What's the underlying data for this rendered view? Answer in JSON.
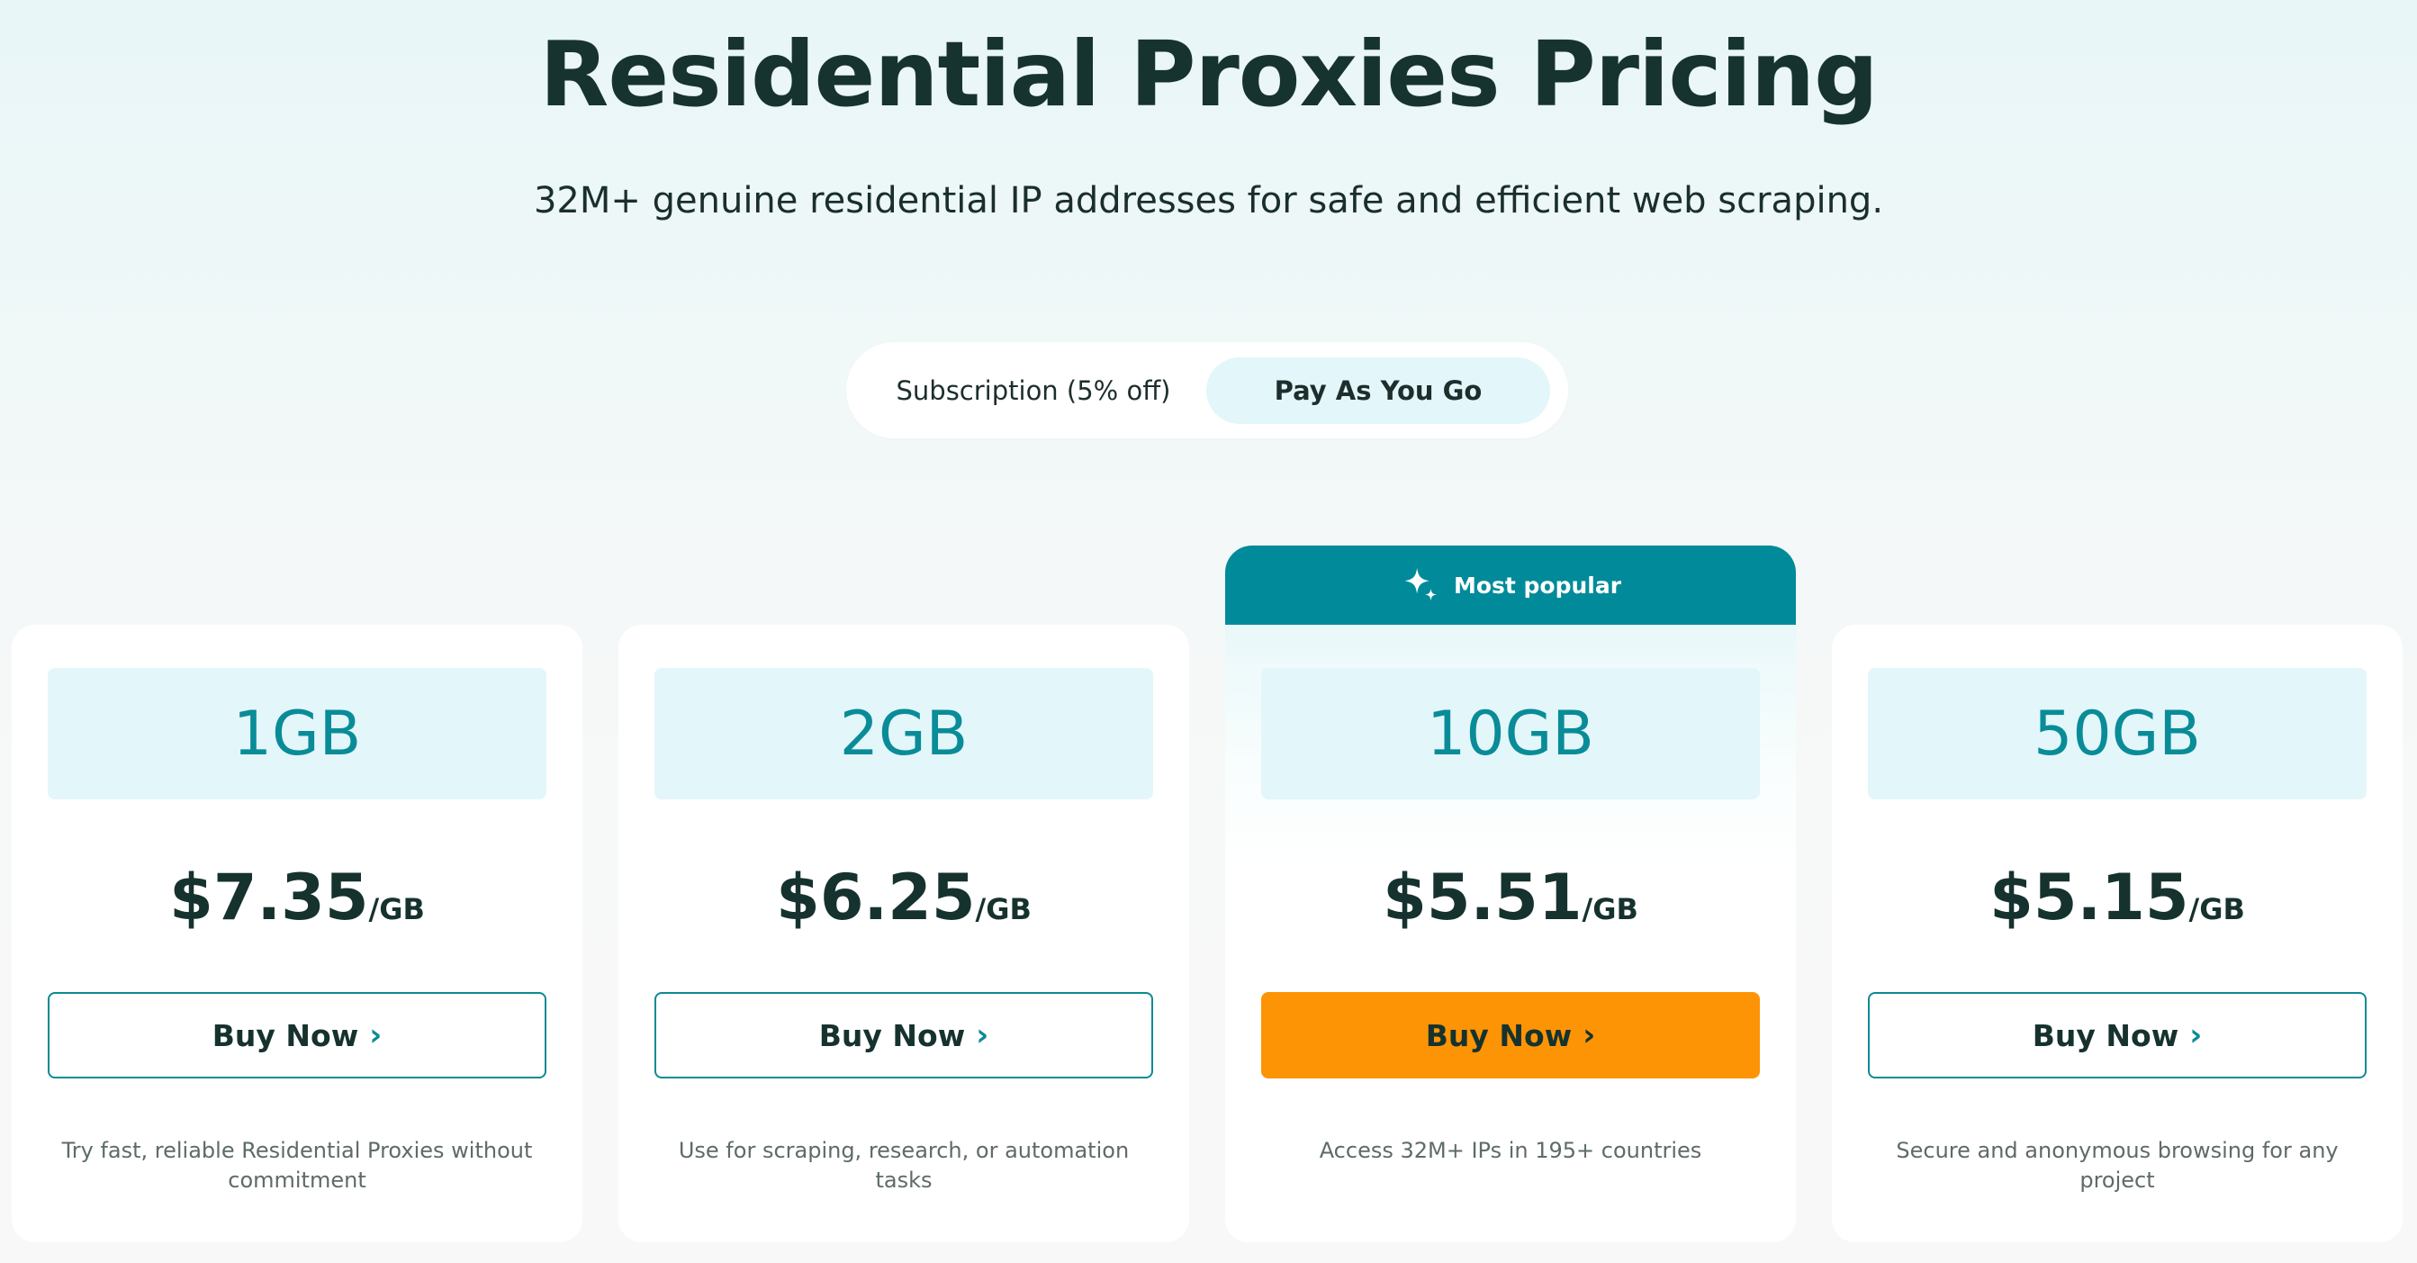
{
  "header": {
    "title": "Residential Proxies Pricing",
    "subtitle": "32M+ genuine residential IP addresses for safe and efficient web scraping."
  },
  "billing_toggle": {
    "options": [
      "Subscription (5% off)",
      "Pay As You Go"
    ],
    "selected": "Pay As You Go"
  },
  "popular_badge": {
    "label": "Most popular",
    "icon": "sparkle-icon"
  },
  "plans": [
    {
      "size": "1GB",
      "price": "$7.35",
      "unit": "/GB",
      "button": "Buy Now",
      "description": "Try fast, reliable Residential Proxies without commitment"
    },
    {
      "size": "2GB",
      "price": "$6.25",
      "unit": "/GB",
      "button": "Buy Now",
      "description": "Use for scraping, research, or automation tasks"
    },
    {
      "size": "10GB",
      "price": "$5.51",
      "unit": "/GB",
      "button": "Buy Now",
      "description": "Access 32M+ IPs in 195+ countries",
      "popular": true
    },
    {
      "size": "50GB",
      "price": "$5.15",
      "unit": "/GB",
      "button": "Buy Now",
      "description": "Secure and anonymous browsing for any project"
    }
  ],
  "colors": {
    "accent": "#018b9a",
    "cta_orange": "#fd9405",
    "size_box_bg": "#e3f6fa",
    "text_dark": "#16322e"
  }
}
